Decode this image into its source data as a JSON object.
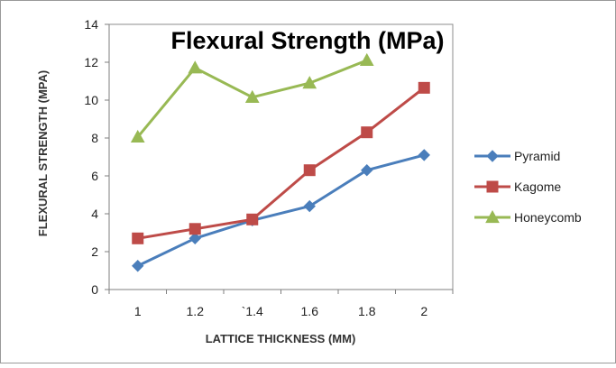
{
  "chart_data": {
    "type": "line",
    "title": "Flexural Strength (MPa)",
    "xlabel": "LATTICE THICKNESS (MM)",
    "ylabel": "FLEXURAL STRENGTH (MPA)",
    "categories": [
      "1",
      "1.2",
      "`1.4",
      "1.6",
      "1.8",
      "2"
    ],
    "ylim": [
      0,
      14
    ],
    "yticks": [
      "0",
      "2",
      "4",
      "6",
      "8",
      "10",
      "12",
      "14"
    ],
    "grid": false,
    "legend_position": "right",
    "series": [
      {
        "name": "Pyramid",
        "color": "#4A7EBB",
        "marker": "diamond",
        "values": [
          1.25,
          2.7,
          3.65,
          4.4,
          6.3,
          7.1
        ]
      },
      {
        "name": "Kagome",
        "color": "#BE4B48",
        "marker": "square",
        "values": [
          2.7,
          3.2,
          3.7,
          6.3,
          8.3,
          10.65
        ]
      },
      {
        "name": "Honeycomb",
        "color": "#98B954",
        "marker": "triangle",
        "values": [
          8.05,
          11.7,
          10.15,
          10.9,
          12.1,
          null
        ]
      }
    ]
  }
}
